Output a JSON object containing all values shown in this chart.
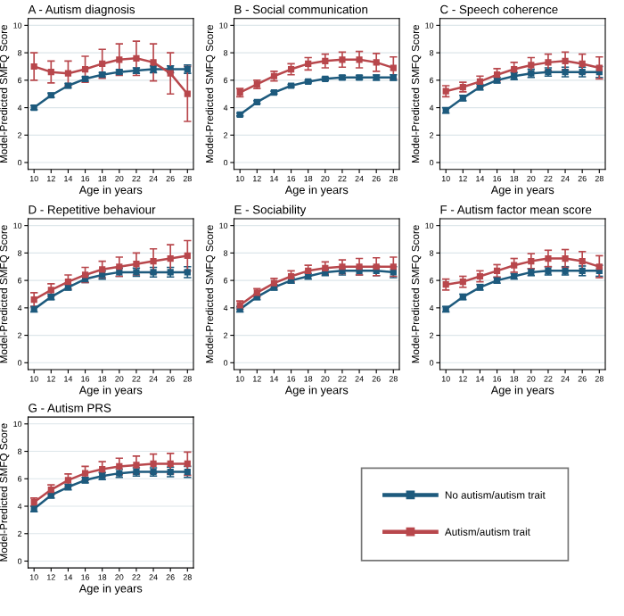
{
  "chart_data": [
    {
      "type": "line",
      "title": "A - Autism diagnosis",
      "xlabel": "Age in years",
      "ylabel": "Model-Predicted SMFQ Score",
      "x": [
        10,
        12,
        14,
        16,
        18,
        20,
        22,
        24,
        26,
        28
      ],
      "xlim": [
        9.3,
        28.7
      ],
      "xticks": [
        10,
        12,
        14,
        16,
        18,
        20,
        22,
        24,
        26,
        28
      ],
      "ylim": [
        -0.5,
        10.5
      ],
      "yticks": [
        0,
        2,
        4,
        6,
        8,
        10
      ],
      "grid": "y",
      "marker": "square",
      "series": [
        {
          "color": "#1d5a7d",
          "values": [
            4.0,
            4.9,
            5.6,
            6.1,
            6.4,
            6.6,
            6.7,
            6.8,
            6.8,
            6.8
          ],
          "errors": [
            0.15,
            0.15,
            0.15,
            0.15,
            0.15,
            0.15,
            0.2,
            0.25,
            0.25,
            0.3
          ]
        },
        {
          "color": "#b8474c",
          "values": [
            7.0,
            6.6,
            6.5,
            6.8,
            7.2,
            7.5,
            7.6,
            7.3,
            6.5,
            5.0
          ],
          "errors": [
            1.0,
            0.8,
            0.9,
            0.95,
            1.05,
            1.15,
            1.25,
            1.35,
            1.5,
            2.0
          ]
        }
      ]
    },
    {
      "type": "line",
      "title": "B - Social communication",
      "xlabel": "Age in years",
      "ylabel": "Model-Predicted SMFQ Score",
      "x": [
        10,
        12,
        14,
        16,
        18,
        20,
        22,
        24,
        26,
        28
      ],
      "xlim": [
        9.3,
        28.7
      ],
      "xticks": [
        10,
        12,
        14,
        16,
        18,
        20,
        22,
        24,
        26,
        28
      ],
      "ylim": [
        -0.5,
        10.5
      ],
      "yticks": [
        0,
        2,
        4,
        6,
        8,
        10
      ],
      "grid": "y",
      "marker": "square",
      "series": [
        {
          "color": "#1d5a7d",
          "values": [
            3.5,
            4.4,
            5.1,
            5.6,
            5.9,
            6.1,
            6.2,
            6.2,
            6.2,
            6.2
          ],
          "errors": [
            0.1,
            0.1,
            0.1,
            0.1,
            0.1,
            0.12,
            0.15,
            0.15,
            0.18,
            0.2
          ]
        },
        {
          "color": "#b8474c",
          "values": [
            5.1,
            5.7,
            6.3,
            6.8,
            7.2,
            7.4,
            7.5,
            7.5,
            7.3,
            6.9
          ],
          "errors": [
            0.3,
            0.3,
            0.35,
            0.4,
            0.45,
            0.5,
            0.55,
            0.6,
            0.65,
            0.8
          ]
        }
      ]
    },
    {
      "type": "line",
      "title": "C - Speech coherence",
      "xlabel": "Age in years",
      "ylabel": "Model-Predicted SMFQ Score",
      "x": [
        10,
        12,
        14,
        16,
        18,
        20,
        22,
        24,
        26,
        28
      ],
      "xlim": [
        9.3,
        28.7
      ],
      "xticks": [
        10,
        12,
        14,
        16,
        18,
        20,
        22,
        24,
        26,
        28
      ],
      "ylim": [
        -0.5,
        10.5
      ],
      "yticks": [
        0,
        2,
        4,
        6,
        8,
        10
      ],
      "grid": "y",
      "marker": "square",
      "series": [
        {
          "color": "#1d5a7d",
          "values": [
            3.8,
            4.7,
            5.5,
            6.0,
            6.3,
            6.5,
            6.6,
            6.6,
            6.6,
            6.6
          ],
          "errors": [
            0.2,
            0.2,
            0.2,
            0.2,
            0.25,
            0.3,
            0.3,
            0.35,
            0.35,
            0.4
          ]
        },
        {
          "color": "#b8474c",
          "values": [
            5.2,
            5.5,
            5.9,
            6.4,
            6.8,
            7.1,
            7.3,
            7.4,
            7.2,
            6.9
          ],
          "errors": [
            0.4,
            0.35,
            0.4,
            0.45,
            0.5,
            0.55,
            0.6,
            0.65,
            0.7,
            0.8
          ]
        }
      ]
    },
    {
      "type": "line",
      "title": "D - Repetitive behaviour",
      "xlabel": "Age in years",
      "ylabel": "Model-Predicted SMFQ Score",
      "x": [
        10,
        12,
        14,
        16,
        18,
        20,
        22,
        24,
        26,
        28
      ],
      "xlim": [
        9.3,
        28.7
      ],
      "xticks": [
        10,
        12,
        14,
        16,
        18,
        20,
        22,
        24,
        26,
        28
      ],
      "ylim": [
        -0.5,
        10.5
      ],
      "yticks": [
        0,
        2,
        4,
        6,
        8,
        10
      ],
      "grid": "y",
      "marker": "square",
      "series": [
        {
          "color": "#1d5a7d",
          "values": [
            3.9,
            4.8,
            5.5,
            6.1,
            6.4,
            6.6,
            6.6,
            6.6,
            6.6,
            6.6
          ],
          "errors": [
            0.2,
            0.2,
            0.2,
            0.25,
            0.3,
            0.3,
            0.3,
            0.35,
            0.35,
            0.4
          ]
        },
        {
          "color": "#b8474c",
          "values": [
            4.6,
            5.3,
            5.9,
            6.4,
            6.8,
            7.0,
            7.2,
            7.4,
            7.6,
            7.8
          ],
          "errors": [
            0.5,
            0.45,
            0.5,
            0.55,
            0.6,
            0.7,
            0.8,
            0.9,
            1.0,
            1.1
          ]
        }
      ]
    },
    {
      "type": "line",
      "title": "E - Sociability",
      "xlabel": "Age in years",
      "ylabel": "Model-Predicted SMFQ Score",
      "x": [
        10,
        12,
        14,
        16,
        18,
        20,
        22,
        24,
        26,
        28
      ],
      "xlim": [
        9.3,
        28.7
      ],
      "xticks": [
        10,
        12,
        14,
        16,
        18,
        20,
        22,
        24,
        26,
        28
      ],
      "ylim": [
        -0.5,
        10.5
      ],
      "yticks": [
        0,
        2,
        4,
        6,
        8,
        10
      ],
      "grid": "y",
      "marker": "square",
      "series": [
        {
          "color": "#1d5a7d",
          "values": [
            3.9,
            4.8,
            5.5,
            6.0,
            6.3,
            6.6,
            6.7,
            6.7,
            6.7,
            6.6
          ],
          "errors": [
            0.2,
            0.2,
            0.2,
            0.2,
            0.2,
            0.25,
            0.3,
            0.3,
            0.35,
            0.4
          ]
        },
        {
          "color": "#b8474c",
          "values": [
            4.2,
            5.1,
            5.8,
            6.3,
            6.7,
            6.9,
            7.0,
            7.0,
            7.0,
            7.0
          ],
          "errors": [
            0.3,
            0.3,
            0.35,
            0.4,
            0.4,
            0.45,
            0.5,
            0.6,
            0.65,
            0.7
          ]
        }
      ]
    },
    {
      "type": "line",
      "title": "F - Autism factor mean score",
      "xlabel": "Age in years",
      "ylabel": "Model-Predicted SMFQ Score",
      "x": [
        10,
        12,
        14,
        16,
        18,
        20,
        22,
        24,
        26,
        28
      ],
      "xlim": [
        9.3,
        28.7
      ],
      "xticks": [
        10,
        12,
        14,
        16,
        18,
        20,
        22,
        24,
        26,
        28
      ],
      "ylim": [
        -0.5,
        10.5
      ],
      "yticks": [
        0,
        2,
        4,
        6,
        8,
        10
      ],
      "grid": "y",
      "marker": "square",
      "series": [
        {
          "color": "#1d5a7d",
          "values": [
            3.9,
            4.8,
            5.5,
            6.0,
            6.3,
            6.6,
            6.7,
            6.7,
            6.7,
            6.7
          ],
          "errors": [
            0.2,
            0.2,
            0.2,
            0.2,
            0.2,
            0.25,
            0.3,
            0.3,
            0.35,
            0.4
          ]
        },
        {
          "color": "#b8474c",
          "values": [
            5.7,
            5.9,
            6.3,
            6.7,
            7.1,
            7.4,
            7.6,
            7.6,
            7.4,
            7.0
          ],
          "errors": [
            0.4,
            0.4,
            0.4,
            0.45,
            0.5,
            0.55,
            0.6,
            0.65,
            0.7,
            0.8
          ]
        }
      ]
    },
    {
      "type": "line",
      "title": "G - Autism PRS",
      "xlabel": "Age in years",
      "ylabel": "Model-Predicted SMFQ Score",
      "x": [
        10,
        12,
        14,
        16,
        18,
        20,
        22,
        24,
        26,
        28
      ],
      "xlim": [
        9.3,
        28.7
      ],
      "xticks": [
        10,
        12,
        14,
        16,
        18,
        20,
        22,
        24,
        26,
        28
      ],
      "ylim": [
        -0.5,
        10.5
      ],
      "yticks": [
        0,
        2,
        4,
        6,
        8,
        10
      ],
      "grid": "y",
      "marker": "square",
      "legend": "bottom right",
      "series": [
        {
          "name": "No autism/autism trait",
          "color": "#1d5a7d",
          "values": [
            3.8,
            4.8,
            5.4,
            5.9,
            6.2,
            6.4,
            6.5,
            6.5,
            6.5,
            6.5
          ],
          "errors": [
            0.2,
            0.2,
            0.2,
            0.2,
            0.25,
            0.3,
            0.3,
            0.3,
            0.35,
            0.4
          ]
        },
        {
          "name": "Autism/autism trait",
          "color": "#b8474c",
          "values": [
            4.3,
            5.2,
            5.9,
            6.4,
            6.7,
            6.9,
            7.0,
            7.1,
            7.1,
            7.1
          ],
          "errors": [
            0.3,
            0.35,
            0.45,
            0.5,
            0.55,
            0.6,
            0.65,
            0.7,
            0.75,
            0.85
          ]
        }
      ]
    }
  ]
}
